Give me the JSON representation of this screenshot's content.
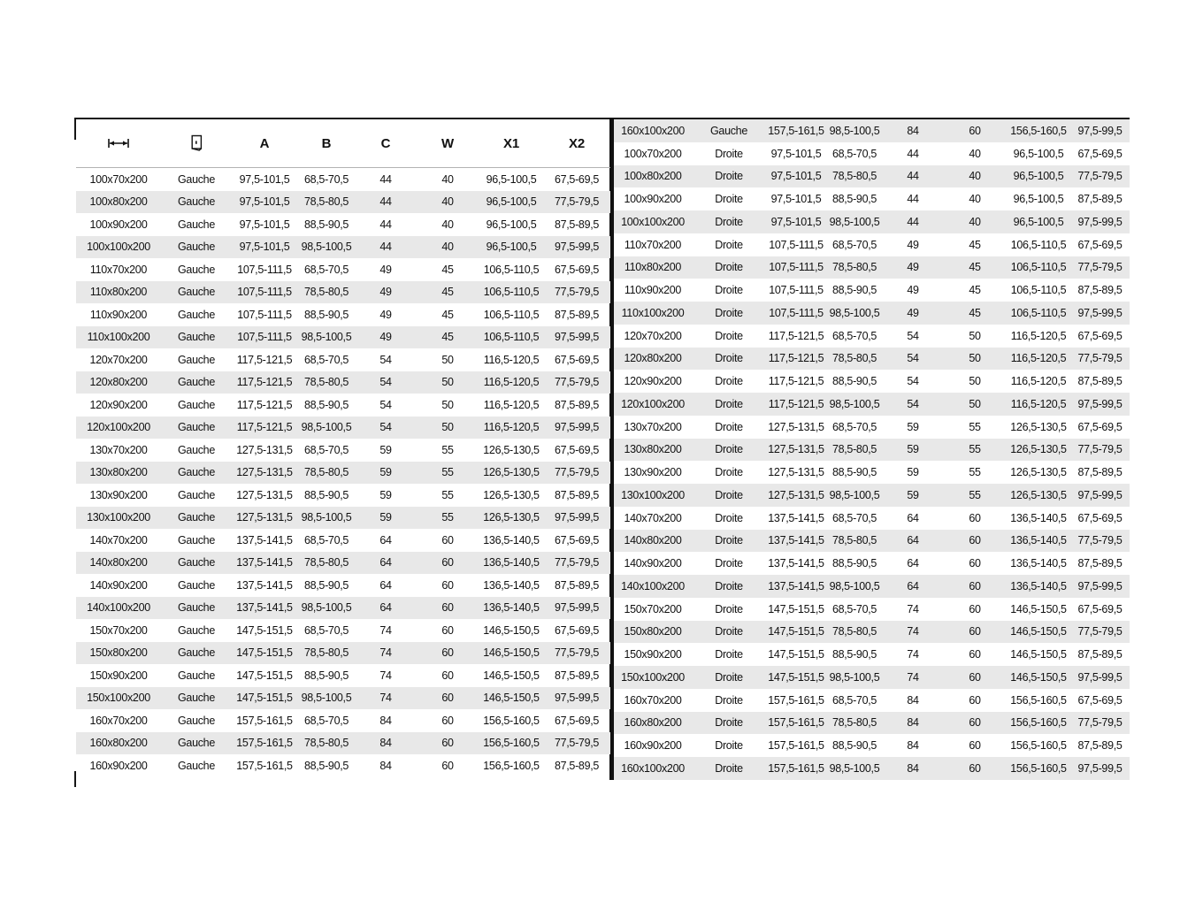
{
  "page": {
    "background": "#ffffff",
    "stripe_color": "#e8e8e8",
    "text_color": "#111111",
    "rule_color": "#161616",
    "header_underline_color": "#b3b3b3"
  },
  "table": {
    "header": {
      "col1_icon": "width-arrow-icon",
      "col2_icon": "door-icon",
      "labels": [
        "A",
        "B",
        "C",
        "W",
        "X1",
        "X2"
      ]
    },
    "left_rows": [
      [
        "100x70x200",
        "Gauche",
        "97,5-101,5",
        "68,5-70,5",
        "44",
        "40",
        "96,5-100,5",
        "67,5-69,5"
      ],
      [
        "100x80x200",
        "Gauche",
        "97,5-101,5",
        "78,5-80,5",
        "44",
        "40",
        "96,5-100,5",
        "77,5-79,5"
      ],
      [
        "100x90x200",
        "Gauche",
        "97,5-101,5",
        "88,5-90,5",
        "44",
        "40",
        "96,5-100,5",
        "87,5-89,5"
      ],
      [
        "100x100x200",
        "Gauche",
        "97,5-101,5",
        "98,5-100,5",
        "44",
        "40",
        "96,5-100,5",
        "97,5-99,5"
      ],
      [
        "110x70x200",
        "Gauche",
        "107,5-111,5",
        "68,5-70,5",
        "49",
        "45",
        "106,5-110,5",
        "67,5-69,5"
      ],
      [
        "110x80x200",
        "Gauche",
        "107,5-111,5",
        "78,5-80,5",
        "49",
        "45",
        "106,5-110,5",
        "77,5-79,5"
      ],
      [
        "110x90x200",
        "Gauche",
        "107,5-111,5",
        "88,5-90,5",
        "49",
        "45",
        "106,5-110,5",
        "87,5-89,5"
      ],
      [
        "110x100x200",
        "Gauche",
        "107,5-111,5",
        "98,5-100,5",
        "49",
        "45",
        "106,5-110,5",
        "97,5-99,5"
      ],
      [
        "120x70x200",
        "Gauche",
        "117,5-121,5",
        "68,5-70,5",
        "54",
        "50",
        "116,5-120,5",
        "67,5-69,5"
      ],
      [
        "120x80x200",
        "Gauche",
        "117,5-121,5",
        "78,5-80,5",
        "54",
        "50",
        "116,5-120,5",
        "77,5-79,5"
      ],
      [
        "120x90x200",
        "Gauche",
        "117,5-121,5",
        "88,5-90,5",
        "54",
        "50",
        "116,5-120,5",
        "87,5-89,5"
      ],
      [
        "120x100x200",
        "Gauche",
        "117,5-121,5",
        "98,5-100,5",
        "54",
        "50",
        "116,5-120,5",
        "97,5-99,5"
      ],
      [
        "130x70x200",
        "Gauche",
        "127,5-131,5",
        "68,5-70,5",
        "59",
        "55",
        "126,5-130,5",
        "67,5-69,5"
      ],
      [
        "130x80x200",
        "Gauche",
        "127,5-131,5",
        "78,5-80,5",
        "59",
        "55",
        "126,5-130,5",
        "77,5-79,5"
      ],
      [
        "130x90x200",
        "Gauche",
        "127,5-131,5",
        "88,5-90,5",
        "59",
        "55",
        "126,5-130,5",
        "87,5-89,5"
      ],
      [
        "130x100x200",
        "Gauche",
        "127,5-131,5",
        "98,5-100,5",
        "59",
        "55",
        "126,5-130,5",
        "97,5-99,5"
      ],
      [
        "140x70x200",
        "Gauche",
        "137,5-141,5",
        "68,5-70,5",
        "64",
        "60",
        "136,5-140,5",
        "67,5-69,5"
      ],
      [
        "140x80x200",
        "Gauche",
        "137,5-141,5",
        "78,5-80,5",
        "64",
        "60",
        "136,5-140,5",
        "77,5-79,5"
      ],
      [
        "140x90x200",
        "Gauche",
        "137,5-141,5",
        "88,5-90,5",
        "64",
        "60",
        "136,5-140,5",
        "87,5-89,5"
      ],
      [
        "140x100x200",
        "Gauche",
        "137,5-141,5",
        "98,5-100,5",
        "64",
        "60",
        "136,5-140,5",
        "97,5-99,5"
      ],
      [
        "150x70x200",
        "Gauche",
        "147,5-151,5",
        "68,5-70,5",
        "74",
        "60",
        "146,5-150,5",
        "67,5-69,5"
      ],
      [
        "150x80x200",
        "Gauche",
        "147,5-151,5",
        "78,5-80,5",
        "74",
        "60",
        "146,5-150,5",
        "77,5-79,5"
      ],
      [
        "150x90x200",
        "Gauche",
        "147,5-151,5",
        "88,5-90,5",
        "74",
        "60",
        "146,5-150,5",
        "87,5-89,5"
      ],
      [
        "150x100x200",
        "Gauche",
        "147,5-151,5",
        "98,5-100,5",
        "74",
        "60",
        "146,5-150,5",
        "97,5-99,5"
      ],
      [
        "160x70x200",
        "Gauche",
        "157,5-161,5",
        "68,5-70,5",
        "84",
        "60",
        "156,5-160,5",
        "67,5-69,5"
      ],
      [
        "160x80x200",
        "Gauche",
        "157,5-161,5",
        "78,5-80,5",
        "84",
        "60",
        "156,5-160,5",
        "77,5-79,5"
      ],
      [
        "160x90x200",
        "Gauche",
        "157,5-161,5",
        "88,5-90,5",
        "84",
        "60",
        "156,5-160,5",
        "87,5-89,5"
      ]
    ],
    "right_rows": [
      [
        "160x100x200",
        "Gauche",
        "157,5-161,5",
        "98,5-100,5",
        "84",
        "60",
        "156,5-160,5",
        "97,5-99,5"
      ],
      [
        "100x70x200",
        "Droite",
        "97,5-101,5",
        "68,5-70,5",
        "44",
        "40",
        "96,5-100,5",
        "67,5-69,5"
      ],
      [
        "100x80x200",
        "Droite",
        "97,5-101,5",
        "78,5-80,5",
        "44",
        "40",
        "96,5-100,5",
        "77,5-79,5"
      ],
      [
        "100x90x200",
        "Droite",
        "97,5-101,5",
        "88,5-90,5",
        "44",
        "40",
        "96,5-100,5",
        "87,5-89,5"
      ],
      [
        "100x100x200",
        "Droite",
        "97,5-101,5",
        "98,5-100,5",
        "44",
        "40",
        "96,5-100,5",
        "97,5-99,5"
      ],
      [
        "110x70x200",
        "Droite",
        "107,5-111,5",
        "68,5-70,5",
        "49",
        "45",
        "106,5-110,5",
        "67,5-69,5"
      ],
      [
        "110x80x200",
        "Droite",
        "107,5-111,5",
        "78,5-80,5",
        "49",
        "45",
        "106,5-110,5",
        "77,5-79,5"
      ],
      [
        "110x90x200",
        "Droite",
        "107,5-111,5",
        "88,5-90,5",
        "49",
        "45",
        "106,5-110,5",
        "87,5-89,5"
      ],
      [
        "110x100x200",
        "Droite",
        "107,5-111,5",
        "98,5-100,5",
        "49",
        "45",
        "106,5-110,5",
        "97,5-99,5"
      ],
      [
        "120x70x200",
        "Droite",
        "117,5-121,5",
        "68,5-70,5",
        "54",
        "50",
        "116,5-120,5",
        "67,5-69,5"
      ],
      [
        "120x80x200",
        "Droite",
        "117,5-121,5",
        "78,5-80,5",
        "54",
        "50",
        "116,5-120,5",
        "77,5-79,5"
      ],
      [
        "120x90x200",
        "Droite",
        "117,5-121,5",
        "88,5-90,5",
        "54",
        "50",
        "116,5-120,5",
        "87,5-89,5"
      ],
      [
        "120x100x200",
        "Droite",
        "117,5-121,5",
        "98,5-100,5",
        "54",
        "50",
        "116,5-120,5",
        "97,5-99,5"
      ],
      [
        "130x70x200",
        "Droite",
        "127,5-131,5",
        "68,5-70,5",
        "59",
        "55",
        "126,5-130,5",
        "67,5-69,5"
      ],
      [
        "130x80x200",
        "Droite",
        "127,5-131,5",
        "78,5-80,5",
        "59",
        "55",
        "126,5-130,5",
        "77,5-79,5"
      ],
      [
        "130x90x200",
        "Droite",
        "127,5-131,5",
        "88,5-90,5",
        "59",
        "55",
        "126,5-130,5",
        "87,5-89,5"
      ],
      [
        "130x100x200",
        "Droite",
        "127,5-131,5",
        "98,5-100,5",
        "59",
        "55",
        "126,5-130,5",
        "97,5-99,5"
      ],
      [
        "140x70x200",
        "Droite",
        "137,5-141,5",
        "68,5-70,5",
        "64",
        "60",
        "136,5-140,5",
        "67,5-69,5"
      ],
      [
        "140x80x200",
        "Droite",
        "137,5-141,5",
        "78,5-80,5",
        "64",
        "60",
        "136,5-140,5",
        "77,5-79,5"
      ],
      [
        "140x90x200",
        "Droite",
        "137,5-141,5",
        "88,5-90,5",
        "64",
        "60",
        "136,5-140,5",
        "87,5-89,5"
      ],
      [
        "140x100x200",
        "Droite",
        "137,5-141,5",
        "98,5-100,5",
        "64",
        "60",
        "136,5-140,5",
        "97,5-99,5"
      ],
      [
        "150x70x200",
        "Droite",
        "147,5-151,5",
        "68,5-70,5",
        "74",
        "60",
        "146,5-150,5",
        "67,5-69,5"
      ],
      [
        "150x80x200",
        "Droite",
        "147,5-151,5",
        "78,5-80,5",
        "74",
        "60",
        "146,5-150,5",
        "77,5-79,5"
      ],
      [
        "150x90x200",
        "Droite",
        "147,5-151,5",
        "88,5-90,5",
        "74",
        "60",
        "146,5-150,5",
        "87,5-89,5"
      ],
      [
        "150x100x200",
        "Droite",
        "147,5-151,5",
        "98,5-100,5",
        "74",
        "60",
        "146,5-150,5",
        "97,5-99,5"
      ],
      [
        "160x70x200",
        "Droite",
        "157,5-161,5",
        "68,5-70,5",
        "84",
        "60",
        "156,5-160,5",
        "67,5-69,5"
      ],
      [
        "160x80x200",
        "Droite",
        "157,5-161,5",
        "78,5-80,5",
        "84",
        "60",
        "156,5-160,5",
        "77,5-79,5"
      ],
      [
        "160x90x200",
        "Droite",
        "157,5-161,5",
        "88,5-90,5",
        "84",
        "60",
        "156,5-160,5",
        "87,5-89,5"
      ],
      [
        "160x100x200",
        "Droite",
        "157,5-161,5",
        "98,5-100,5",
        "84",
        "60",
        "156,5-160,5",
        "97,5-99,5"
      ]
    ]
  }
}
